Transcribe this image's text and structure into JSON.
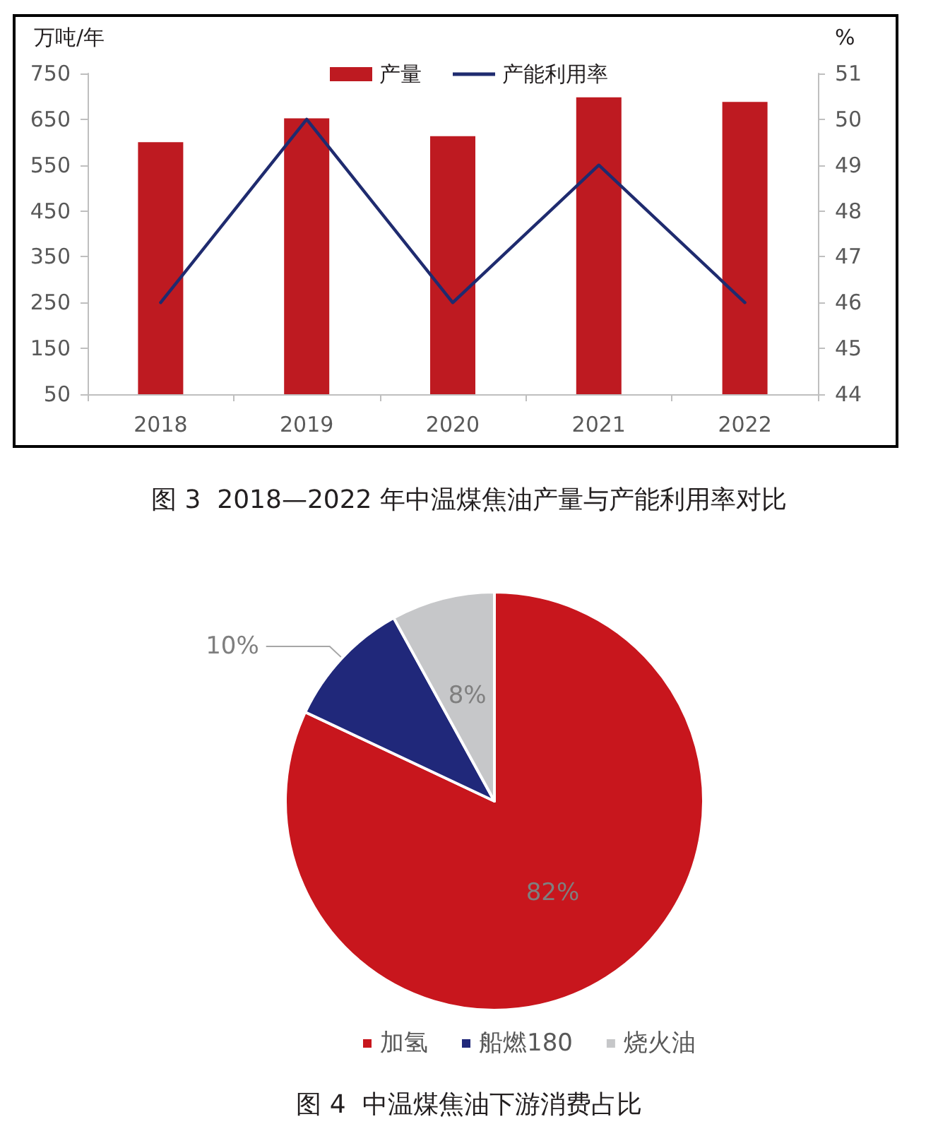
{
  "chart_data": [
    {
      "type": "bar",
      "title": "图 3  2018—2022 年中温煤焦油产量与产能利用率对比",
      "ylabel": "万吨/年",
      "y2label": "%",
      "categories": [
        "2018",
        "2019",
        "2020",
        "2021",
        "2022"
      ],
      "series": [
        {
          "name": "产量",
          "type": "bar",
          "color": "#be1a21",
          "values": [
            600,
            652,
            613,
            698,
            688
          ]
        },
        {
          "name": "产能利用率",
          "type": "line",
          "axis": "y2",
          "color": "#1f2b6f",
          "values": [
            46,
            50,
            46,
            49,
            46
          ]
        }
      ],
      "ylim": [
        50,
        750
      ],
      "yticks": [
        50,
        150,
        250,
        350,
        450,
        550,
        650,
        750
      ],
      "y2lim": [
        44,
        51
      ],
      "y2ticks": [
        44,
        45,
        46,
        47,
        48,
        49,
        50,
        51
      ],
      "legend": "top",
      "marker": "none"
    },
    {
      "type": "pie",
      "title": "图 4  中温煤焦油下游消费占比",
      "categories": [
        "加氢",
        "船燃180",
        "烧火油"
      ],
      "values": [
        82,
        10,
        8
      ],
      "colors": [
        "#c8161d",
        "#20287a",
        "#c6c7c9"
      ],
      "value_labels": [
        "82%",
        "10%",
        "8%"
      ],
      "legend": "bottom"
    }
  ]
}
